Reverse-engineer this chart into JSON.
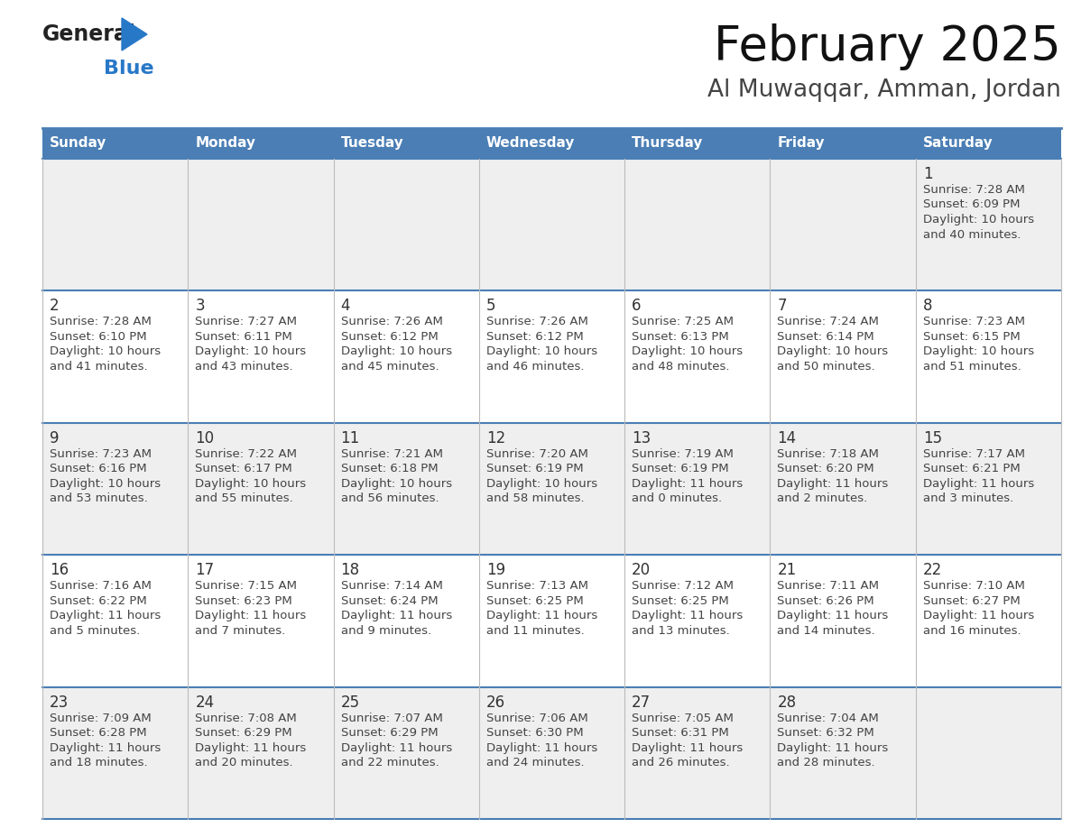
{
  "title": "February 2025",
  "subtitle": "Al Muwaqqar, Amman, Jordan",
  "days_of_week": [
    "Sunday",
    "Monday",
    "Tuesday",
    "Wednesday",
    "Thursday",
    "Friday",
    "Saturday"
  ],
  "header_bg": "#4a7eb5",
  "header_text": "#FFFFFF",
  "cell_bg_odd": "#EFEFEF",
  "cell_bg_even": "#FFFFFF",
  "cell_text": "#333333",
  "day_num_color": "#333333",
  "border_top_color": "#4a7eb5",
  "row_divider_color": "#4a7eb5",
  "grid_color": "#CCCCCC",
  "logo_general_color": "#222222",
  "logo_blue_color": "#2878C8",
  "calendar_data": [
    {
      "day": 1,
      "col": 6,
      "row": 0,
      "sunrise": "7:28 AM",
      "sunset": "6:09 PM",
      "daylight": "10 hours and 40 minutes"
    },
    {
      "day": 2,
      "col": 0,
      "row": 1,
      "sunrise": "7:28 AM",
      "sunset": "6:10 PM",
      "daylight": "10 hours and 41 minutes"
    },
    {
      "day": 3,
      "col": 1,
      "row": 1,
      "sunrise": "7:27 AM",
      "sunset": "6:11 PM",
      "daylight": "10 hours and 43 minutes"
    },
    {
      "day": 4,
      "col": 2,
      "row": 1,
      "sunrise": "7:26 AM",
      "sunset": "6:12 PM",
      "daylight": "10 hours and 45 minutes"
    },
    {
      "day": 5,
      "col": 3,
      "row": 1,
      "sunrise": "7:26 AM",
      "sunset": "6:12 PM",
      "daylight": "10 hours and 46 minutes"
    },
    {
      "day": 6,
      "col": 4,
      "row": 1,
      "sunrise": "7:25 AM",
      "sunset": "6:13 PM",
      "daylight": "10 hours and 48 minutes"
    },
    {
      "day": 7,
      "col": 5,
      "row": 1,
      "sunrise": "7:24 AM",
      "sunset": "6:14 PM",
      "daylight": "10 hours and 50 minutes"
    },
    {
      "day": 8,
      "col": 6,
      "row": 1,
      "sunrise": "7:23 AM",
      "sunset": "6:15 PM",
      "daylight": "10 hours and 51 minutes"
    },
    {
      "day": 9,
      "col": 0,
      "row": 2,
      "sunrise": "7:23 AM",
      "sunset": "6:16 PM",
      "daylight": "10 hours and 53 minutes"
    },
    {
      "day": 10,
      "col": 1,
      "row": 2,
      "sunrise": "7:22 AM",
      "sunset": "6:17 PM",
      "daylight": "10 hours and 55 minutes"
    },
    {
      "day": 11,
      "col": 2,
      "row": 2,
      "sunrise": "7:21 AM",
      "sunset": "6:18 PM",
      "daylight": "10 hours and 56 minutes"
    },
    {
      "day": 12,
      "col": 3,
      "row": 2,
      "sunrise": "7:20 AM",
      "sunset": "6:19 PM",
      "daylight": "10 hours and 58 minutes"
    },
    {
      "day": 13,
      "col": 4,
      "row": 2,
      "sunrise": "7:19 AM",
      "sunset": "6:19 PM",
      "daylight": "11 hours and 0 minutes"
    },
    {
      "day": 14,
      "col": 5,
      "row": 2,
      "sunrise": "7:18 AM",
      "sunset": "6:20 PM",
      "daylight": "11 hours and 2 minutes"
    },
    {
      "day": 15,
      "col": 6,
      "row": 2,
      "sunrise": "7:17 AM",
      "sunset": "6:21 PM",
      "daylight": "11 hours and 3 minutes"
    },
    {
      "day": 16,
      "col": 0,
      "row": 3,
      "sunrise": "7:16 AM",
      "sunset": "6:22 PM",
      "daylight": "11 hours and 5 minutes"
    },
    {
      "day": 17,
      "col": 1,
      "row": 3,
      "sunrise": "7:15 AM",
      "sunset": "6:23 PM",
      "daylight": "11 hours and 7 minutes"
    },
    {
      "day": 18,
      "col": 2,
      "row": 3,
      "sunrise": "7:14 AM",
      "sunset": "6:24 PM",
      "daylight": "11 hours and 9 minutes"
    },
    {
      "day": 19,
      "col": 3,
      "row": 3,
      "sunrise": "7:13 AM",
      "sunset": "6:25 PM",
      "daylight": "11 hours and 11 minutes"
    },
    {
      "day": 20,
      "col": 4,
      "row": 3,
      "sunrise": "7:12 AM",
      "sunset": "6:25 PM",
      "daylight": "11 hours and 13 minutes"
    },
    {
      "day": 21,
      "col": 5,
      "row": 3,
      "sunrise": "7:11 AM",
      "sunset": "6:26 PM",
      "daylight": "11 hours and 14 minutes"
    },
    {
      "day": 22,
      "col": 6,
      "row": 3,
      "sunrise": "7:10 AM",
      "sunset": "6:27 PM",
      "daylight": "11 hours and 16 minutes"
    },
    {
      "day": 23,
      "col": 0,
      "row": 4,
      "sunrise": "7:09 AM",
      "sunset": "6:28 PM",
      "daylight": "11 hours and 18 minutes"
    },
    {
      "day": 24,
      "col": 1,
      "row": 4,
      "sunrise": "7:08 AM",
      "sunset": "6:29 PM",
      "daylight": "11 hours and 20 minutes"
    },
    {
      "day": 25,
      "col": 2,
      "row": 4,
      "sunrise": "7:07 AM",
      "sunset": "6:29 PM",
      "daylight": "11 hours and 22 minutes"
    },
    {
      "day": 26,
      "col": 3,
      "row": 4,
      "sunrise": "7:06 AM",
      "sunset": "6:30 PM",
      "daylight": "11 hours and 24 minutes"
    },
    {
      "day": 27,
      "col": 4,
      "row": 4,
      "sunrise": "7:05 AM",
      "sunset": "6:31 PM",
      "daylight": "11 hours and 26 minutes"
    },
    {
      "day": 28,
      "col": 5,
      "row": 4,
      "sunrise": "7:04 AM",
      "sunset": "6:32 PM",
      "daylight": "11 hours and 28 minutes"
    }
  ]
}
